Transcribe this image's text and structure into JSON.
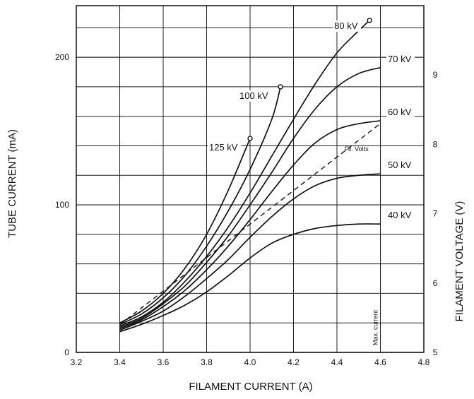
{
  "chart_data": {
    "type": "line",
    "xlabel": "FILAMENT CURRENT (A)",
    "ylabel": "TUBE CURRENT (mA)",
    "y2label": "FILAMENT VOLTAGE (V)",
    "xlim": [
      3.2,
      4.8
    ],
    "ylim": [
      0,
      235
    ],
    "y2lim": [
      5,
      10
    ],
    "x_ticks": [
      "3.2",
      "3.4",
      "3.6",
      "3.8",
      "4.0",
      "4.2",
      "4.4",
      "4.6",
      "4.8"
    ],
    "y_ticks": [
      "0",
      "100",
      "200"
    ],
    "y2_ticks": [
      "5",
      "6",
      "7",
      "8",
      "9"
    ],
    "grid": true,
    "series": [
      {
        "name": "40 kV",
        "x": [
          3.4,
          3.5,
          3.6,
          3.7,
          3.8,
          3.9,
          4.0,
          4.1,
          4.2,
          4.3,
          4.4,
          4.5,
          4.6
        ],
        "y": [
          14,
          19,
          25,
          32,
          41,
          52,
          64,
          74,
          80,
          84,
          86,
          87,
          87
        ]
      },
      {
        "name": "50 kV",
        "x": [
          3.4,
          3.5,
          3.6,
          3.7,
          3.8,
          3.9,
          4.0,
          4.1,
          4.2,
          4.3,
          4.4,
          4.5,
          4.6
        ],
        "y": [
          15,
          21,
          28,
          38,
          50,
          63,
          78,
          92,
          104,
          113,
          118,
          120,
          121
        ]
      },
      {
        "name": "60 kV",
        "x": [
          3.4,
          3.5,
          3.6,
          3.7,
          3.8,
          3.9,
          4.0,
          4.1,
          4.2,
          4.3,
          4.4,
          4.5,
          4.6
        ],
        "y": [
          16,
          22,
          31,
          42,
          56,
          72,
          90,
          109,
          127,
          142,
          151,
          155,
          157
        ]
      },
      {
        "name": "70 kV",
        "x": [
          3.4,
          3.5,
          3.6,
          3.7,
          3.8,
          3.9,
          4.0,
          4.1,
          4.2,
          4.3,
          4.4,
          4.5,
          4.6
        ],
        "y": [
          17,
          23,
          33,
          45,
          61,
          79,
          100,
          122,
          145,
          165,
          180,
          189,
          193
        ]
      },
      {
        "name": "80 kV",
        "x": [
          3.4,
          3.5,
          3.6,
          3.7,
          3.8,
          3.9,
          4.0,
          4.1,
          4.2,
          4.3,
          4.4,
          4.5,
          4.55
        ],
        "y": [
          18,
          24,
          34,
          48,
          65,
          85,
          108,
          133,
          158,
          182,
          203,
          218,
          225
        ]
      },
      {
        "name": "100 kV",
        "x": [
          3.4,
          3.5,
          3.6,
          3.7,
          3.8,
          3.9,
          4.0,
          4.1,
          4.14
        ],
        "y": [
          19,
          26,
          37,
          52,
          72,
          96,
          124,
          158,
          180
        ]
      },
      {
        "name": "125 kV",
        "x": [
          3.4,
          3.5,
          3.6,
          3.7,
          3.8,
          3.9,
          4.0
        ],
        "y": [
          20,
          28,
          40,
          57,
          80,
          110,
          145
        ]
      }
    ],
    "filament_voltage": {
      "name": "Fil. Volts",
      "x": [
        3.4,
        4.6
      ],
      "y": [
        5.4,
        8.3
      ]
    },
    "annotations": {
      "max_current_label": "Max. current",
      "max_current_x": 4.6
    }
  }
}
